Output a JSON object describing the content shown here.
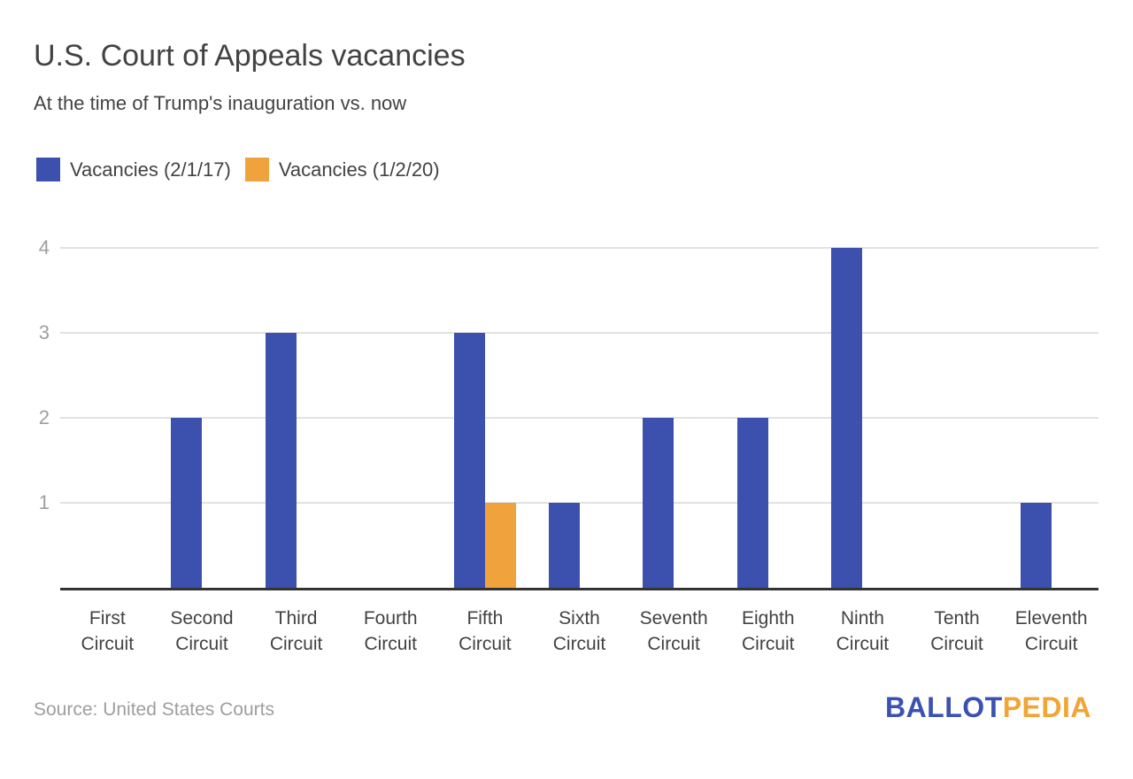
{
  "header": {
    "title": "U.S. Court of Appeals vacancies",
    "subtitle": "At the time of Trump's inauguration vs. now"
  },
  "legend": {
    "items": [
      {
        "label": "Vacancies (2/1/17)",
        "color": "#3B51AD"
      },
      {
        "label": "Vacancies (1/2/20)",
        "color": "#F0A33C"
      }
    ]
  },
  "footer": {
    "source": "Source: United States Courts",
    "logo": {
      "part1": "BALLOT",
      "part2": "PEDIA",
      "color1": "#3B51B3",
      "color2": "#F2A434"
    }
  },
  "chart_data": {
    "type": "bar",
    "title": "U.S. Court of Appeals vacancies",
    "subtitle": "At the time of Trump's inauguration vs. now",
    "categories": [
      "First Circuit",
      "Second Circuit",
      "Third Circuit",
      "Fourth Circuit",
      "Fifth Circuit",
      "Sixth Circuit",
      "Seventh Circuit",
      "Eighth Circuit",
      "Ninth Circuit",
      "Tenth Circuit",
      "Eleventh Circuit"
    ],
    "series": [
      {
        "name": "Vacancies (2/1/17)",
        "color": "#3B51AD",
        "values": [
          0,
          2,
          3,
          0,
          3,
          1,
          2,
          2,
          4,
          0,
          1
        ]
      },
      {
        "name": "Vacancies (1/2/20)",
        "color": "#F0A33C",
        "values": [
          0,
          0,
          0,
          0,
          1,
          0,
          0,
          0,
          0,
          0,
          0
        ]
      }
    ],
    "xlabel": "",
    "ylabel": "",
    "yticks": [
      1,
      2,
      3,
      4
    ],
    "ylim": [
      0,
      4
    ],
    "grid": true,
    "legend_position": "top"
  }
}
